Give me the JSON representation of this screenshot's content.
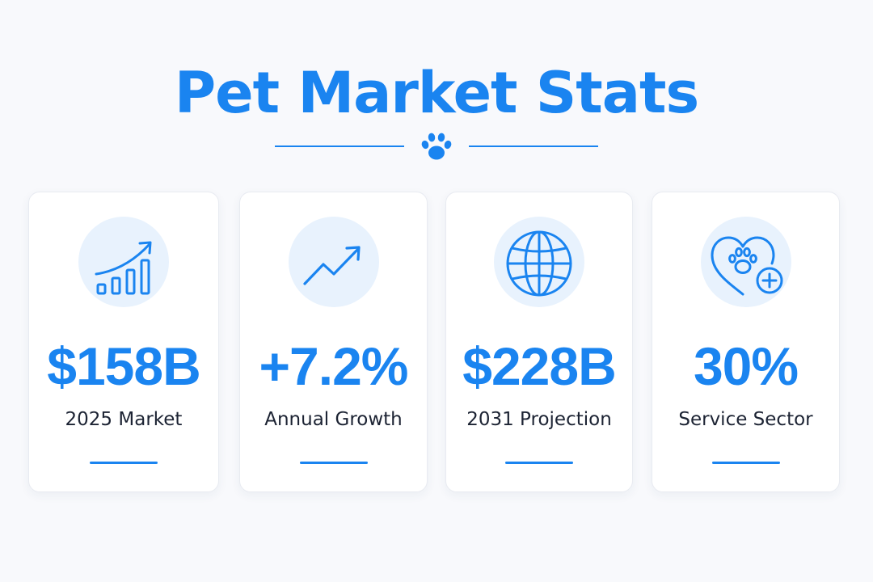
{
  "page": {
    "title": "Pet Market Stats",
    "accent_color": "#1a84f0",
    "divider_icon": "paw-icon"
  },
  "stats": [
    {
      "value": "$158B",
      "label": "2025 Market",
      "icon": "bar-chart-growth-icon"
    },
    {
      "value": "+7.2%",
      "label": "Annual Growth",
      "icon": "trend-up-arrow-icon"
    },
    {
      "value": "$228B",
      "label": "2031 Projection",
      "icon": "globe-icon"
    },
    {
      "value": "30%",
      "label": "Service Sector",
      "icon": "heart-paw-plus-icon"
    }
  ]
}
